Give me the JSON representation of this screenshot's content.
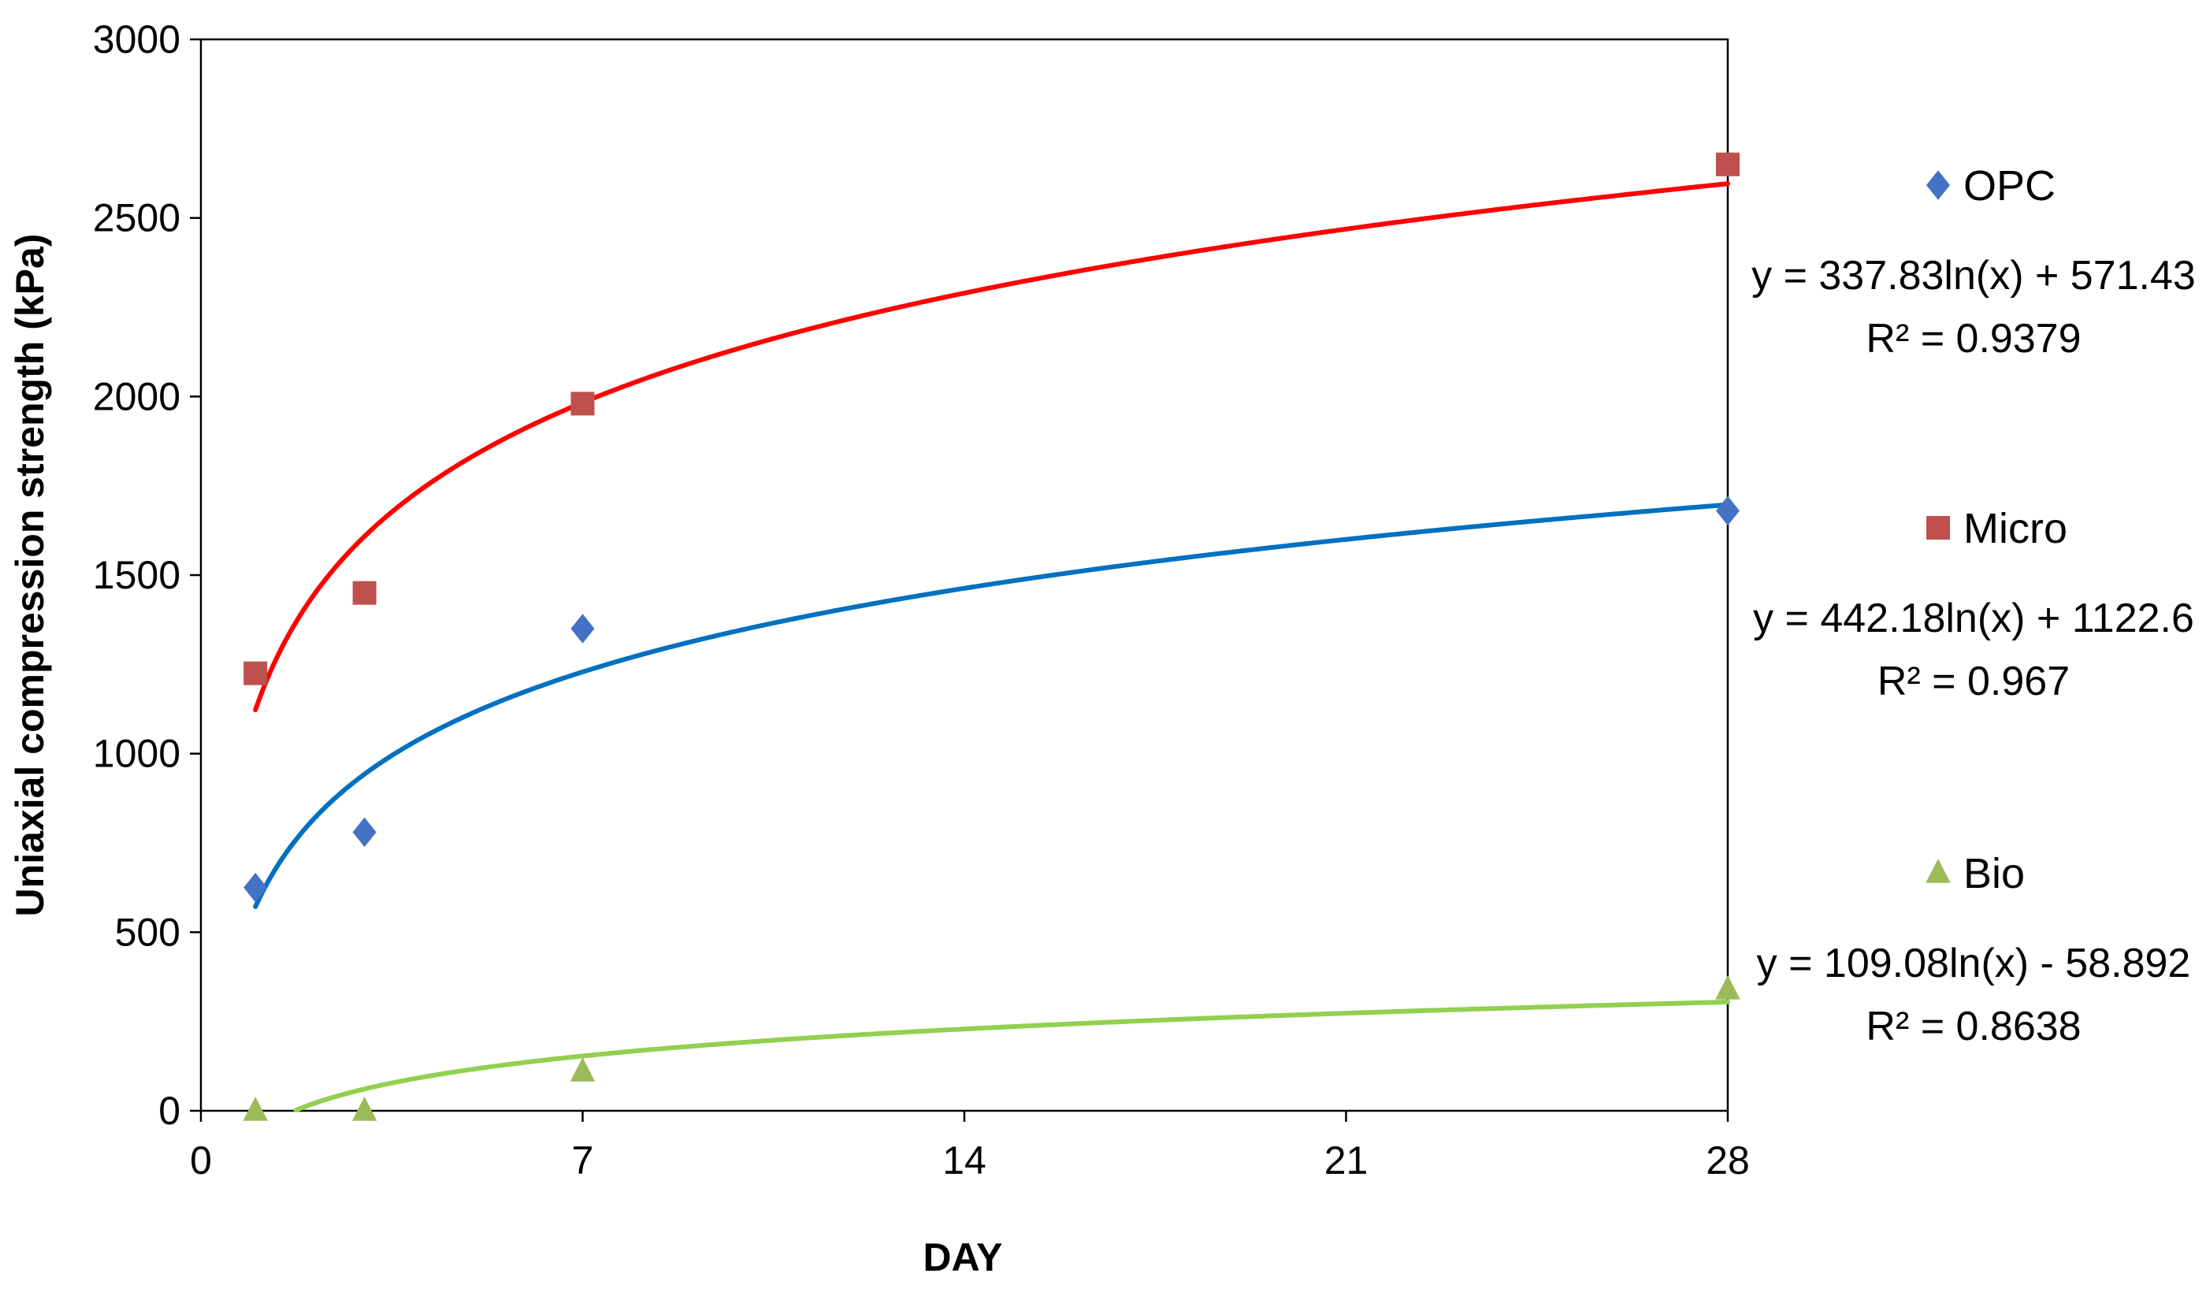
{
  "chart_data": {
    "type": "scatter",
    "title": "",
    "xlabel": "DAY",
    "ylabel": "Uniaxial compression strength (kPa)",
    "xlim": [
      0,
      28
    ],
    "ylim": [
      0,
      3000
    ],
    "xticks": [
      0,
      7,
      14,
      21,
      28
    ],
    "yticks": [
      0,
      500,
      1000,
      1500,
      2000,
      2500,
      3000
    ],
    "grid": false,
    "legend_position": "right",
    "series": [
      {
        "name": "OPC",
        "marker": "diamond",
        "color": "#4472C4",
        "trend_color": "#0070C0",
        "x": [
          1,
          3,
          7,
          28
        ],
        "y": [
          625,
          780,
          1350,
          1680
        ],
        "trendline": {
          "a": 337.83,
          "b": 571.43,
          "equation": "y = 337.83ln(x) + 571.43",
          "r2": "R² = 0.9379"
        }
      },
      {
        "name": "Micro",
        "marker": "square",
        "color": "#C0504D",
        "trend_color": "#FF0000",
        "x": [
          1,
          3,
          7,
          28
        ],
        "y": [
          1225,
          1450,
          1980,
          2650
        ],
        "trendline": {
          "a": 442.18,
          "b": 1122.6,
          "equation": "y = 442.18ln(x) + 1122.6",
          "r2": "R² = 0.967"
        }
      },
      {
        "name": "Bio",
        "marker": "triangle",
        "color": "#9BBB59",
        "trend_color": "#92D050",
        "x": [
          1,
          3,
          7,
          28
        ],
        "y": [
          0,
          0,
          110,
          340
        ],
        "trendline": {
          "a": 109.08,
          "b": -58.892,
          "equation": "y = 109.08ln(x) - 58.892",
          "r2": "R² = 0.8638"
        }
      }
    ]
  }
}
